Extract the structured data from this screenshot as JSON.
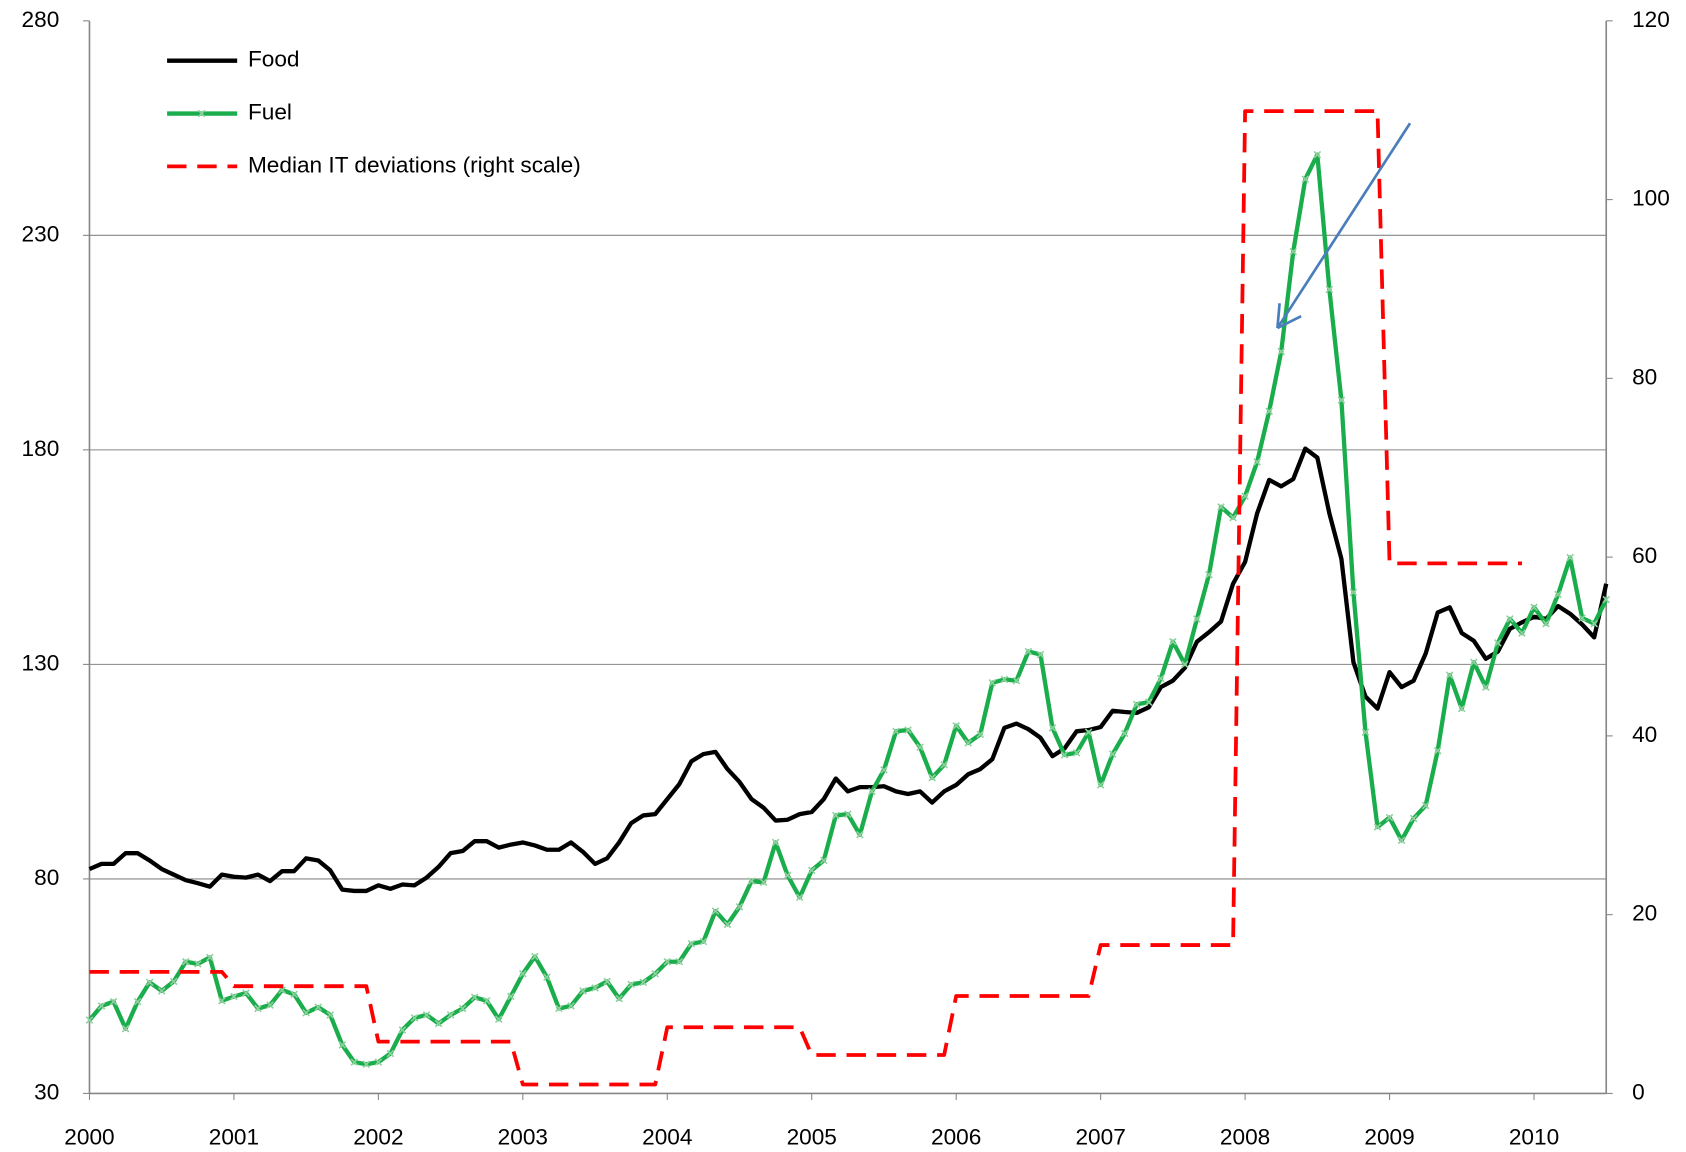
{
  "chart_data": {
    "type": "line",
    "categories": [
      "2000",
      null,
      null,
      null,
      null,
      null,
      null,
      null,
      null,
      null,
      null,
      null,
      "2001",
      null,
      null,
      null,
      null,
      null,
      null,
      null,
      null,
      null,
      null,
      null,
      "2002",
      null,
      null,
      null,
      null,
      null,
      null,
      null,
      null,
      null,
      null,
      null,
      "2003",
      null,
      null,
      null,
      null,
      null,
      null,
      null,
      null,
      null,
      null,
      null,
      "2004",
      null,
      null,
      null,
      null,
      null,
      null,
      null,
      null,
      null,
      null,
      null,
      "2005",
      null,
      null,
      null,
      null,
      null,
      null,
      null,
      null,
      null,
      null,
      null,
      "2006",
      null,
      null,
      null,
      null,
      null,
      null,
      null,
      null,
      null,
      null,
      null,
      "2007",
      null,
      null,
      null,
      null,
      null,
      null,
      null,
      null,
      null,
      null,
      null,
      "2008",
      null,
      null,
      null,
      null,
      null,
      null,
      null,
      null,
      null,
      null,
      null,
      "2009",
      null,
      null,
      null,
      null,
      null,
      null,
      null,
      null,
      null,
      null,
      null,
      "2010",
      null,
      null,
      null,
      null,
      null,
      null
    ],
    "ylim": [
      30,
      280
    ],
    "yticks": [
      30,
      80,
      130,
      180,
      230,
      280
    ],
    "y2lim": [
      0,
      120
    ],
    "y2ticks": [
      0,
      20,
      40,
      60,
      80,
      100,
      120
    ],
    "grid": true,
    "legend": "upper left",
    "series": [
      {
        "name": "Food",
        "color": "#000000",
        "linestyle": "solid",
        "values": [
          82.3,
          83.5,
          83.5,
          86,
          86,
          84.3,
          82.3,
          81,
          79.7,
          79,
          78.2,
          81,
          80.5,
          80.3,
          81,
          79.5,
          81.8,
          81.8,
          84.8,
          84.3,
          82,
          77.5,
          77.2,
          77.2,
          78.5,
          77.7,
          78.7,
          78.5,
          80.3,
          82.8,
          86,
          86.5,
          88.8,
          88.8,
          87.3,
          88,
          88.5,
          87.8,
          86.8,
          86.8,
          88.5,
          86.3,
          83.5,
          84.8,
          88.5,
          93,
          94.8,
          95.1,
          98.6,
          102.1,
          107.4,
          109.1,
          109.6,
          105.6,
          102.6,
          98.6,
          96.6,
          93.6,
          93.8,
          95.1,
          95.6,
          98.6,
          103.4,
          100.4,
          101.4,
          101.4,
          101.6,
          100.4,
          99.8,
          100.4,
          97.8,
          100.4,
          101.9,
          104.4,
          105.6,
          107.9,
          115.2,
          116.2,
          114.9,
          112.9,
          108.6,
          110.4,
          114.4,
          114.7,
          115.4,
          119.2,
          118.9,
          118.7,
          120,
          124.7,
          126.2,
          129.2,
          135.3,
          137.5,
          140,
          148.8,
          153.9,
          165.2,
          173,
          171.5,
          173.2,
          180.3,
          178.2,
          165.2,
          154.6,
          130.5,
          122.5,
          119.7,
          128.2,
          124.7,
          126.2,
          132.5,
          142.1,
          143.3,
          137.3,
          135.5,
          131.3,
          133,
          138.3,
          139.8,
          141.1,
          140.6,
          143.6,
          141.8,
          139.3,
          136.3,
          148.8
        ]
      },
      {
        "name": "Fuel",
        "color": "#1aad4b",
        "linestyle": "solid",
        "marker": "x",
        "values": [
          47.1,
          50.4,
          51.4,
          45.1,
          51.4,
          55.9,
          53.9,
          56.1,
          60.7,
          60.2,
          61.7,
          51.6,
          52.6,
          53.4,
          49.8,
          50.6,
          54.1,
          53.1,
          48.8,
          50.1,
          48.3,
          41.3,
          37.3,
          36.8,
          37.3,
          39.3,
          44.8,
          47.6,
          48.3,
          46.3,
          48.3,
          49.8,
          52.4,
          51.6,
          47.3,
          52.6,
          57.9,
          61.9,
          57.1,
          49.8,
          50.4,
          53.9,
          54.6,
          56.1,
          52.1,
          55.4,
          55.9,
          57.9,
          60.7,
          60.7,
          64.9,
          65.4,
          72.5,
          69.4,
          73.5,
          79.5,
          79.2,
          88.5,
          80.8,
          75.7,
          82,
          84.3,
          94.8,
          95.1,
          90.3,
          100.4,
          105.4,
          114.4,
          114.7,
          110.7,
          103.6,
          106.6,
          115.7,
          111.7,
          113.7,
          125.7,
          126.5,
          126.2,
          133,
          132.3,
          115.2,
          108.9,
          109.4,
          114.2,
          101.9,
          109.1,
          113.9,
          120.7,
          121.2,
          126.7,
          135.3,
          130,
          140.6,
          150.9,
          166.7,
          164.2,
          169.2,
          177.2,
          189,
          202.9,
          226.2,
          243.1,
          248.8,
          217.4,
          191.6,
          146.8,
          114.2,
          92.1,
          94.3,
          89,
          94.1,
          97.1,
          109.9,
          127.5,
          119.7,
          130.5,
          124.7,
          135,
          140.6,
          137.3,
          143.3,
          139.5,
          146.3,
          154.9,
          140.8,
          139.5,
          145.1
        ]
      },
      {
        "name": "Median IT deviations (right scale)",
        "color": "#ff0000",
        "linestyle": "dashed",
        "axis": "y2",
        "values": [
          13.6,
          13.6,
          13.6,
          13.6,
          13.6,
          13.6,
          13.6,
          13.6,
          13.6,
          13.6,
          13.6,
          13.6,
          12,
          12,
          12,
          12,
          12,
          12,
          12,
          12,
          12,
          12,
          12,
          12,
          5.8,
          5.8,
          5.8,
          5.8,
          5.8,
          5.8,
          5.8,
          5.8,
          5.8,
          5.8,
          5.8,
          5.8,
          1,
          1,
          1,
          1,
          1,
          1,
          1,
          1,
          1,
          1,
          1,
          1,
          7.4,
          7.4,
          7.4,
          7.4,
          7.4,
          7.4,
          7.4,
          7.4,
          7.4,
          7.4,
          7.4,
          7.4,
          4.3,
          4.3,
          4.3,
          4.3,
          4.3,
          4.3,
          4.3,
          4.3,
          4.3,
          4.3,
          4.3,
          4.3,
          10.9,
          10.9,
          10.9,
          10.9,
          10.9,
          10.9,
          10.9,
          10.9,
          10.9,
          10.9,
          10.9,
          10.9,
          16.6,
          16.6,
          16.6,
          16.6,
          16.6,
          16.6,
          16.6,
          16.6,
          16.6,
          16.6,
          16.6,
          16.6,
          109.9,
          109.9,
          109.9,
          109.9,
          109.9,
          109.9,
          109.9,
          109.9,
          109.9,
          109.9,
          109.9,
          109.9,
          59.3,
          59.3,
          59.3,
          59.3,
          59.3,
          59.3,
          59.3,
          59.3,
          59.3,
          59.3,
          59.3,
          59.3,
          null,
          null,
          null,
          null,
          null,
          null,
          null
        ]
      }
    ]
  }
}
